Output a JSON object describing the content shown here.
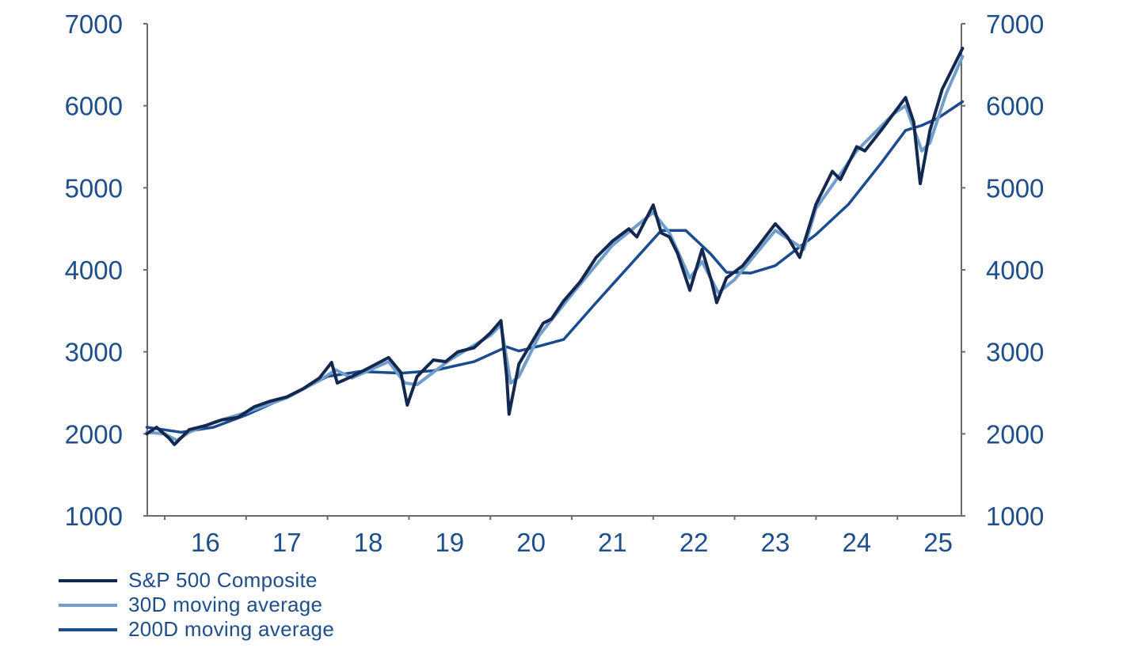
{
  "chart_data": {
    "type": "line",
    "title": "",
    "xlabel": "",
    "ylabel": "",
    "ylim": [
      1000,
      7000
    ],
    "xlim": [
      2015.78,
      2025.8
    ],
    "y_ticks": [
      1000,
      2000,
      3000,
      4000,
      5000,
      6000,
      7000
    ],
    "y_ticks_right": [
      1000,
      2000,
      3000,
      4000,
      5000,
      6000,
      7000
    ],
    "x_tick_labels": [
      "16",
      "17",
      "18",
      "19",
      "20",
      "21",
      "22",
      "23",
      "24",
      "25"
    ],
    "grid": false,
    "legend_position": "bottom-left",
    "series": [
      {
        "name": "S&P 500 Composite",
        "color": "#14284f",
        "x": [
          2015.78,
          2015.9,
          2016.05,
          2016.12,
          2016.3,
          2016.5,
          2016.7,
          2016.9,
          2017.1,
          2017.3,
          2017.5,
          2017.7,
          2017.9,
          2018.05,
          2018.12,
          2018.3,
          2018.5,
          2018.75,
          2018.9,
          2018.98,
          2019.1,
          2019.3,
          2019.45,
          2019.6,
          2019.8,
          2020.0,
          2020.13,
          2020.2,
          2020.23,
          2020.35,
          2020.5,
          2020.65,
          2020.75,
          2020.9,
          2021.1,
          2021.3,
          2021.5,
          2021.7,
          2021.8,
          2022.0,
          2022.1,
          2022.2,
          2022.3,
          2022.45,
          2022.6,
          2022.72,
          2022.78,
          2022.9,
          2023.1,
          2023.3,
          2023.5,
          2023.65,
          2023.8,
          2024.0,
          2024.2,
          2024.3,
          2024.5,
          2024.6,
          2024.8,
          2024.95,
          2025.1,
          2025.2,
          2025.28,
          2025.4,
          2025.55,
          2025.7,
          2025.8
        ],
        "values": [
          2000,
          2080,
          1950,
          1870,
          2050,
          2100,
          2170,
          2200,
          2330,
          2400,
          2450,
          2550,
          2680,
          2870,
          2620,
          2700,
          2800,
          2930,
          2750,
          2350,
          2700,
          2900,
          2880,
          3000,
          3050,
          3230,
          3380,
          2700,
          2240,
          2850,
          3100,
          3350,
          3400,
          3620,
          3850,
          4150,
          4350,
          4500,
          4400,
          4790,
          4450,
          4400,
          4200,
          3750,
          4250,
          3850,
          3600,
          3900,
          4050,
          4300,
          4560,
          4400,
          4150,
          4800,
          5200,
          5100,
          5500,
          5450,
          5700,
          5900,
          6100,
          5800,
          5050,
          5700,
          6200,
          6500,
          6700
        ]
      },
      {
        "name": "30D moving average",
        "color": "#6f9dcc",
        "x": [
          2015.78,
          2016.0,
          2016.15,
          2016.3,
          2016.6,
          2017.0,
          2017.5,
          2017.9,
          2018.1,
          2018.3,
          2018.75,
          2018.95,
          2019.1,
          2019.5,
          2020.0,
          2020.13,
          2020.25,
          2020.35,
          2020.6,
          2021.0,
          2021.5,
          2022.0,
          2022.2,
          2022.45,
          2022.6,
          2022.8,
          2023.0,
          2023.5,
          2023.85,
          2024.0,
          2024.5,
          2024.95,
          2025.1,
          2025.3,
          2025.4,
          2025.6,
          2025.8
        ],
        "values": [
          2020,
          2000,
          1920,
          2020,
          2140,
          2260,
          2440,
          2650,
          2780,
          2680,
          2880,
          2620,
          2600,
          2900,
          3200,
          3330,
          2620,
          2700,
          3200,
          3700,
          4300,
          4700,
          4450,
          3900,
          4100,
          3720,
          3880,
          4480,
          4250,
          4750,
          5450,
          5900,
          6000,
          5450,
          5550,
          6150,
          6600
        ]
      },
      {
        "name": "200D moving average",
        "color": "#1a4a8f",
        "x": [
          2015.78,
          2016.2,
          2016.6,
          2017.0,
          2017.5,
          2018.0,
          2018.4,
          2018.9,
          2019.3,
          2019.8,
          2020.2,
          2020.35,
          2020.6,
          2020.9,
          2021.3,
          2021.8,
          2022.1,
          2022.4,
          2022.7,
          2022.9,
          2023.2,
          2023.5,
          2023.8,
          2024.0,
          2024.4,
          2024.8,
          2025.1,
          2025.3,
          2025.5,
          2025.8
        ],
        "values": [
          2080,
          2020,
          2080,
          2230,
          2450,
          2700,
          2760,
          2740,
          2770,
          2880,
          3060,
          3010,
          3070,
          3150,
          3600,
          4150,
          4480,
          4480,
          4200,
          3970,
          3960,
          4050,
          4280,
          4430,
          4800,
          5300,
          5700,
          5760,
          5850,
          6050
        ]
      }
    ]
  },
  "axes": {
    "left_labels": [
      "7000",
      "6000",
      "5000",
      "4000",
      "3000",
      "2000",
      "1000"
    ],
    "right_labels": [
      "7000",
      "6000",
      "5000",
      "4000",
      "3000",
      "2000",
      "1000"
    ],
    "x_labels": [
      "16",
      "17",
      "18",
      "19",
      "20",
      "21",
      "22",
      "23",
      "24",
      "25"
    ]
  },
  "legend": {
    "items": [
      {
        "label": "S&P 500 Composite",
        "color": "#14284f"
      },
      {
        "label": "30D moving average",
        "color": "#6f9dcc"
      },
      {
        "label": "200D moving average",
        "color": "#1a4a8f"
      }
    ]
  }
}
